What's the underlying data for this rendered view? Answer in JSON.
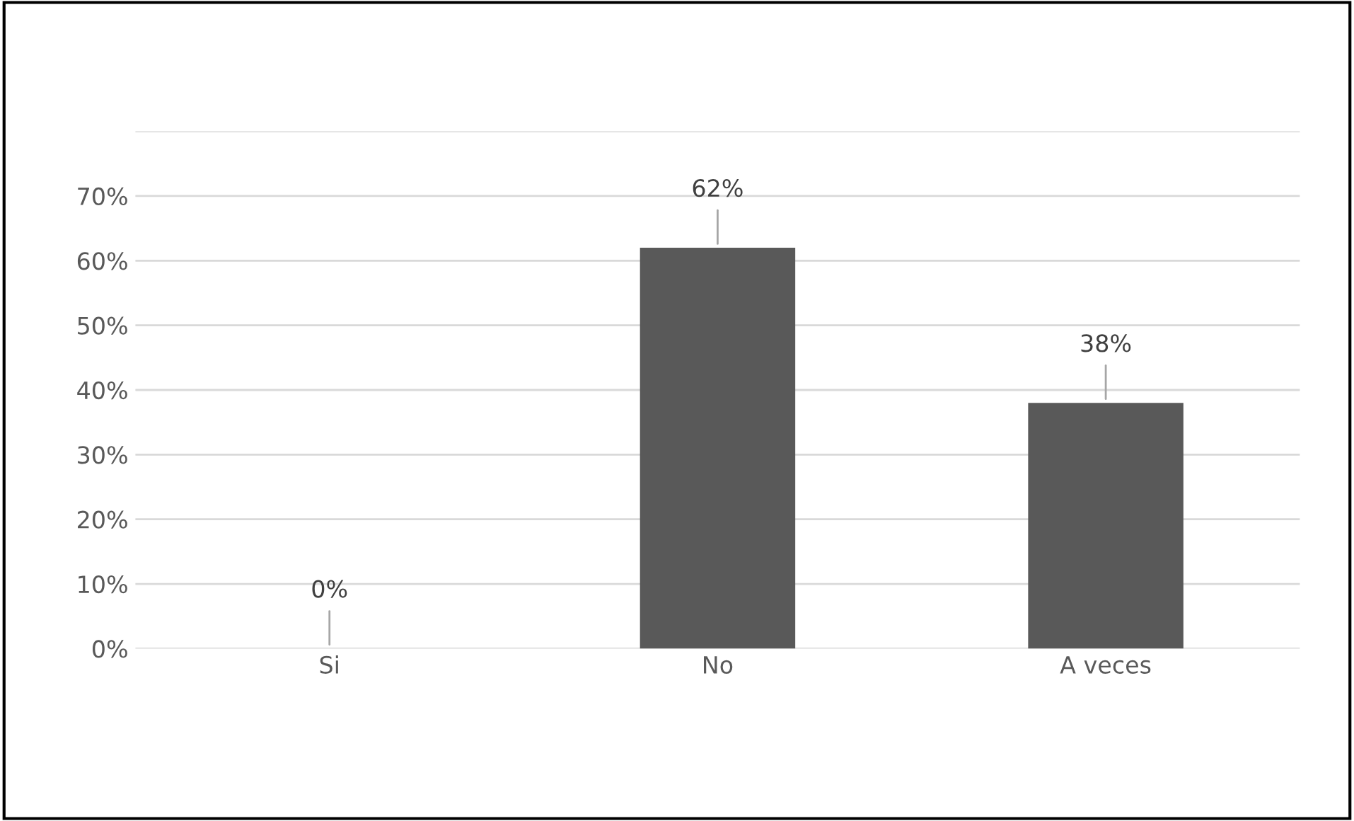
{
  "chart_data": {
    "type": "bar",
    "categories": [
      "Si",
      "No",
      "A veces"
    ],
    "values": [
      0,
      62,
      38
    ],
    "value_labels": [
      "0%",
      "62%",
      "38%"
    ],
    "color": "#595959",
    "ylim": [
      0,
      80
    ],
    "yticks": [
      {
        "value": 0,
        "label": "0%"
      },
      {
        "value": 10,
        "label": "10%"
      },
      {
        "value": 20,
        "label": "20%"
      },
      {
        "value": 30,
        "label": "30%"
      },
      {
        "value": 40,
        "label": "40%"
      },
      {
        "value": 50,
        "label": "50%"
      },
      {
        "value": 60,
        "label": "60%"
      },
      {
        "value": 70,
        "label": "70%"
      },
      {
        "value": 80,
        "label": null
      }
    ],
    "grid": "y",
    "legend": false
  }
}
